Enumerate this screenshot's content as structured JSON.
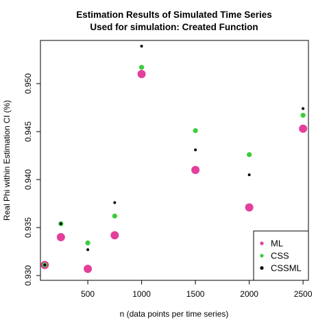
{
  "chart_data": {
    "type": "scatter",
    "title": "Estimation Results of Simulated Time Series",
    "subtitle": "Used for simulation: Created Function",
    "xlabel": "n (data points per time series)",
    "ylabel": "Real Phi within Estimation CI (%)",
    "xlim": [
      60,
      2550
    ],
    "ylim": [
      0.9295,
      0.9545
    ],
    "xticks": [
      500,
      1000,
      1500,
      2000,
      2500
    ],
    "yticks": [
      0.93,
      0.935,
      0.94,
      0.945,
      0.95
    ],
    "ytick_labels": [
      "0.930",
      "0.935",
      "0.940",
      "0.945",
      "0.950"
    ],
    "legend_position": "bottom-right",
    "x": [
      100,
      250,
      500,
      750,
      1000,
      1500,
      2000,
      2500
    ],
    "series": [
      {
        "name": "ML",
        "color": "#e3409c",
        "values": [
          0.9311,
          0.934,
          0.9307,
          0.9342,
          0.951,
          0.941,
          0.9371,
          0.9453
        ]
      },
      {
        "name": "CSS",
        "color": "#3ccc3c",
        "values": [
          0.9311,
          0.9354,
          0.9334,
          0.9362,
          0.9517,
          0.9451,
          0.9426,
          0.9467
        ]
      },
      {
        "name": "CSSML",
        "color": "#000000",
        "values": [
          0.9311,
          0.9354,
          0.9327,
          0.9376,
          0.9539,
          0.9431,
          0.9405,
          0.9474
        ]
      }
    ]
  }
}
